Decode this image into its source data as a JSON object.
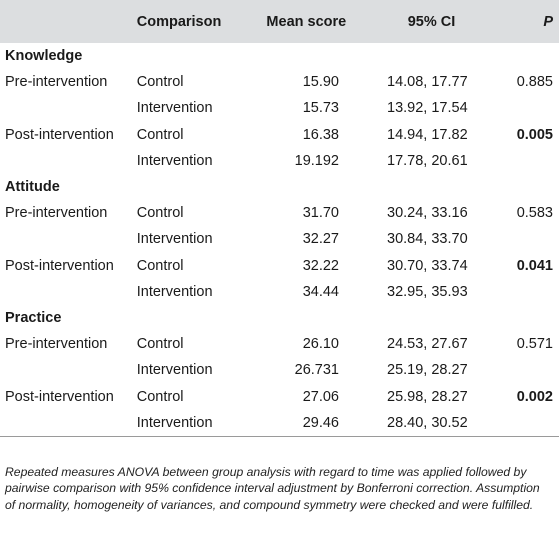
{
  "header": {
    "group": "",
    "comparison": "Comparison",
    "mean": "Mean score",
    "ci": "95% CI",
    "p": "P"
  },
  "sections": [
    {
      "title": "Knowledge",
      "rows": [
        {
          "group": "Pre-intervention",
          "comparison": "Control",
          "mean": "15.90",
          "ci": "14.08, 17.77",
          "p": "0.885",
          "p_bold": false
        },
        {
          "group": "",
          "comparison": "Intervention",
          "mean": "15.73",
          "ci": "13.92, 17.54",
          "p": "",
          "p_bold": false
        },
        {
          "group": "Post-intervention",
          "comparison": "Control",
          "mean": "16.38",
          "ci": "14.94, 17.82",
          "p": "0.005",
          "p_bold": true
        },
        {
          "group": "",
          "comparison": "Intervention",
          "mean": "19.192",
          "ci": "17.78, 20.61",
          "p": "",
          "p_bold": false
        }
      ]
    },
    {
      "title": "Attitude",
      "rows": [
        {
          "group": "Pre-intervention",
          "comparison": "Control",
          "mean": "31.70",
          "ci": "30.24, 33.16",
          "p": "0.583",
          "p_bold": false
        },
        {
          "group": "",
          "comparison": "Intervention",
          "mean": "32.27",
          "ci": "30.84, 33.70",
          "p": "",
          "p_bold": false
        },
        {
          "group": "Post-intervention",
          "comparison": "Control",
          "mean": "32.22",
          "ci": "30.70, 33.74",
          "p": "0.041",
          "p_bold": true
        },
        {
          "group": "",
          "comparison": "Intervention",
          "mean": "34.44",
          "ci": "32.95, 35.93",
          "p": "",
          "p_bold": false
        }
      ]
    },
    {
      "title": "Practice",
      "rows": [
        {
          "group": "Pre-intervention",
          "comparison": "Control",
          "mean": "26.10",
          "ci": "24.53, 27.67",
          "p": "0.571",
          "p_bold": false
        },
        {
          "group": "",
          "comparison": "Intervention",
          "mean": "26.731",
          "ci": "25.19, 28.27",
          "p": "",
          "p_bold": false
        },
        {
          "group": "Post-intervention",
          "comparison": "Control",
          "mean": "27.06",
          "ci": "25.98, 28.27",
          "p": "0.002",
          "p_bold": true
        },
        {
          "group": "",
          "comparison": "Intervention",
          "mean": "29.46",
          "ci": "28.40, 30.52",
          "p": "",
          "p_bold": false
        }
      ]
    }
  ],
  "footnote": "Repeated measures ANOVA between group analysis with regard to time was applied followed by pairwise comparison with 95% confidence interval adjustment by Bonferroni correction. Assumption of normality, homogeneity of variances, and compound symmetry were checked and were fulfilled."
}
